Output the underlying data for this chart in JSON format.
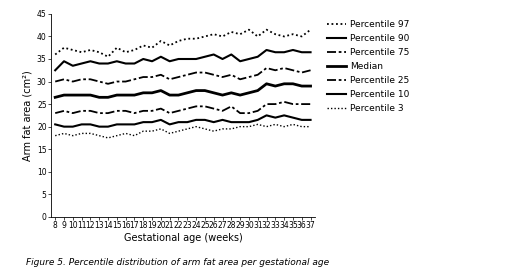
{
  "x": [
    8,
    9,
    10,
    11,
    12,
    13,
    14,
    15,
    16,
    17,
    18,
    19,
    20,
    21,
    22,
    23,
    24,
    25,
    26,
    27,
    28,
    29,
    30,
    31,
    32,
    33,
    34,
    35,
    36,
    37
  ],
  "p97": [
    36.0,
    37.5,
    37.0,
    36.5,
    37.0,
    36.5,
    35.5,
    37.5,
    36.5,
    37.0,
    38.0,
    37.5,
    39.0,
    38.0,
    39.0,
    39.5,
    39.5,
    40.0,
    40.5,
    40.0,
    41.0,
    40.5,
    41.5,
    40.0,
    41.5,
    40.5,
    40.0,
    40.5,
    40.0,
    41.5
  ],
  "p90": [
    32.5,
    34.5,
    33.5,
    34.0,
    34.5,
    34.0,
    34.0,
    34.5,
    34.0,
    34.0,
    35.0,
    34.5,
    35.5,
    34.5,
    35.0,
    35.0,
    35.0,
    35.5,
    36.0,
    35.0,
    36.0,
    34.5,
    35.0,
    35.5,
    37.0,
    36.5,
    36.5,
    37.0,
    36.5,
    36.5
  ],
  "p75": [
    30.0,
    30.5,
    30.0,
    30.5,
    30.5,
    30.0,
    29.5,
    30.0,
    30.0,
    30.5,
    31.0,
    31.0,
    31.5,
    30.5,
    31.0,
    31.5,
    32.0,
    32.0,
    31.5,
    31.0,
    31.5,
    30.5,
    31.0,
    31.5,
    33.0,
    32.5,
    33.0,
    32.5,
    32.0,
    32.5
  ],
  "median": [
    26.5,
    27.0,
    27.0,
    27.0,
    27.0,
    26.5,
    26.5,
    27.0,
    27.0,
    27.0,
    27.5,
    27.5,
    28.0,
    27.0,
    27.0,
    27.5,
    28.0,
    28.0,
    27.5,
    27.0,
    27.5,
    27.0,
    27.5,
    28.0,
    29.5,
    29.0,
    29.5,
    29.5,
    29.0,
    29.0
  ],
  "p25": [
    23.0,
    23.5,
    23.0,
    23.5,
    23.5,
    23.0,
    23.0,
    23.5,
    23.5,
    23.0,
    23.5,
    23.5,
    24.0,
    23.0,
    23.5,
    24.0,
    24.5,
    24.5,
    24.0,
    23.5,
    24.5,
    23.0,
    23.0,
    23.5,
    25.0,
    25.0,
    25.5,
    25.0,
    25.0,
    25.0
  ],
  "p10": [
    20.5,
    20.0,
    20.0,
    20.5,
    20.5,
    20.0,
    20.0,
    20.5,
    20.5,
    20.5,
    21.0,
    21.0,
    21.5,
    20.5,
    21.0,
    21.0,
    21.5,
    21.5,
    21.0,
    21.5,
    21.0,
    21.0,
    21.0,
    21.5,
    22.5,
    22.0,
    22.5,
    22.0,
    21.5,
    21.5
  ],
  "p3": [
    18.0,
    18.5,
    18.0,
    18.5,
    18.5,
    18.0,
    17.5,
    18.0,
    18.5,
    18.0,
    19.0,
    19.0,
    19.5,
    18.5,
    19.0,
    19.5,
    20.0,
    19.5,
    19.0,
    19.5,
    19.5,
    20.0,
    20.0,
    20.5,
    20.0,
    20.5,
    20.0,
    20.5,
    20.0,
    20.0
  ],
  "ylabel": "Arm fat area (cm²)",
  "xlabel": "Gestational age (weeks)",
  "ylim": [
    0,
    45
  ],
  "yticks": [
    0,
    5,
    10,
    15,
    20,
    25,
    30,
    35,
    40,
    45
  ],
  "caption": "Figure 5. Percentile distribution of arm fat area per gestational age",
  "background": "#ffffff",
  "tick_label_fontsize": 5.5,
  "axis_label_fontsize": 7,
  "legend_fontsize": 6.5,
  "caption_fontsize": 6.5
}
